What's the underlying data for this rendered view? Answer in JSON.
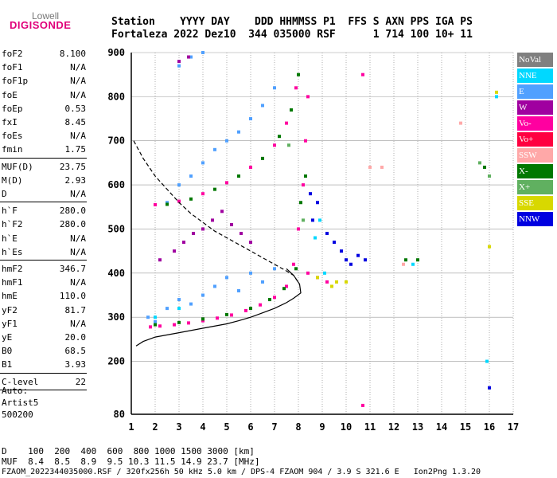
{
  "logo": {
    "line1": "Lowell",
    "line2": "DIGISONDE"
  },
  "header": {
    "line1": "Station    YYYY DAY    DDD HHMMSS P1  FFS S AXN PPS IGA PS",
    "line2": "Fortaleza 2022 Dez10  344 035000 RSF      1 714 100 10+ 11"
  },
  "params": [
    {
      "name": "foF2",
      "value": "8.100"
    },
    {
      "name": "foF1",
      "value": "N/A"
    },
    {
      "name": "foF1p",
      "value": "N/A"
    },
    {
      "name": "foE",
      "value": "N/A"
    },
    {
      "name": "foEp",
      "value": "0.53"
    },
    {
      "name": "fxI",
      "value": "8.45"
    },
    {
      "name": "foEs",
      "value": "N/A"
    },
    {
      "name": "fmin",
      "value": "1.75"
    },
    {
      "name": "MUF(D)",
      "value": "23.75"
    },
    {
      "name": "M(D)",
      "value": "2.93"
    },
    {
      "name": "D",
      "value": "N/A"
    },
    {
      "name": "h`F",
      "value": "280.0"
    },
    {
      "name": "h`F2",
      "value": "280.0"
    },
    {
      "name": "h`E",
      "value": "N/A"
    },
    {
      "name": "h`Es",
      "value": "N/A"
    },
    {
      "name": "hmF2",
      "value": "346.7"
    },
    {
      "name": "hmF1",
      "value": "N/A"
    },
    {
      "name": "hmE",
      "value": "110.0"
    },
    {
      "name": "yF2",
      "value": "81.7"
    },
    {
      "name": "yF1",
      "value": "N/A"
    },
    {
      "name": "yE",
      "value": "20.0"
    },
    {
      "name": "B0",
      "value": "68.5"
    },
    {
      "name": "B1",
      "value": "3.93"
    },
    {
      "name": "C-level",
      "value": "22"
    }
  ],
  "auto": {
    "l1": "Auto:",
    "l2": "Artist5",
    "l3": "500200"
  },
  "legend": [
    {
      "label": "NoVal",
      "color": "#808080"
    },
    {
      "label": "NNE",
      "color": "#00d8ff"
    },
    {
      "label": "E",
      "color": "#50a0ff"
    },
    {
      "label": "W",
      "color": "#a000a0"
    },
    {
      "label": "Vo-",
      "color": "#ff00a0"
    },
    {
      "label": "Vo+",
      "color": "#ff0040"
    },
    {
      "label": "SSW",
      "color": "#ffa8a8"
    },
    {
      "label": "X-",
      "color": "#007800"
    },
    {
      "label": "X+",
      "color": "#60b060"
    },
    {
      "label": "SSE",
      "color": "#d8d800"
    },
    {
      "label": "NNW",
      "color": "#0000e0"
    }
  ],
  "bottom": {
    "d_line": "D    100  200  400  600  800 1000 1500 3000 [km]",
    "muf_line": "MUF  8.4  8.5  8.9  9.5 10.3 11.5 14.9 23.7 [MHz]"
  },
  "footer": "FZAOM_2022344035000.RSF / 320fx256h 50 kHz 5.0 km / DPS-4 FZAOM 904 / 3.9 S 321.6 E   Ion2Png 1.3.20",
  "chart_data": {
    "type": "scatter",
    "title": "",
    "xlabel": "",
    "ylabel": "",
    "xlim": [
      1,
      17
    ],
    "ylim": [
      80,
      900
    ],
    "x_ticks": [
      1,
      2,
      3,
      4,
      5,
      6,
      7,
      8,
      9,
      10,
      11,
      12,
      13,
      14,
      15,
      16,
      17
    ],
    "y_ticks": [
      80,
      200,
      300,
      400,
      500,
      600,
      700,
      800,
      900
    ],
    "grid": true,
    "legend_position": "right",
    "series": [
      {
        "name": "E",
        "points": [
          [
            1.7,
            300
          ],
          [
            2,
            290
          ],
          [
            2.5,
            320
          ],
          [
            3,
            340
          ],
          [
            3.5,
            330
          ],
          [
            4,
            350
          ],
          [
            4.5,
            370
          ],
          [
            5,
            390
          ],
          [
            5.5,
            360
          ],
          [
            6,
            400
          ],
          [
            6.5,
            380
          ],
          [
            7,
            410
          ],
          [
            2.5,
            560
          ],
          [
            3,
            600
          ],
          [
            3.5,
            620
          ],
          [
            4,
            650
          ],
          [
            4.5,
            680
          ],
          [
            5,
            700
          ],
          [
            5.5,
            720
          ],
          [
            6,
            750
          ],
          [
            6.5,
            780
          ],
          [
            7,
            820
          ],
          [
            3,
            870
          ],
          [
            3.5,
            890
          ],
          [
            4,
            900
          ]
        ]
      },
      {
        "name": "W",
        "points": [
          [
            2.2,
            430
          ],
          [
            2.8,
            450
          ],
          [
            3.2,
            470
          ],
          [
            3.6,
            490
          ],
          [
            4,
            500
          ],
          [
            4.4,
            520
          ],
          [
            4.8,
            540
          ],
          [
            5.2,
            510
          ],
          [
            5.6,
            490
          ],
          [
            6,
            470
          ],
          [
            3,
            880
          ],
          [
            3.4,
            890
          ]
        ]
      },
      {
        "name": "Vo-",
        "points": [
          [
            1.8,
            278
          ],
          [
            2.2,
            280
          ],
          [
            2.8,
            283
          ],
          [
            3.4,
            287
          ],
          [
            4,
            292
          ],
          [
            4.6,
            298
          ],
          [
            5.2,
            305
          ],
          [
            5.8,
            315
          ],
          [
            6.4,
            328
          ],
          [
            7,
            345
          ],
          [
            7.5,
            370
          ],
          [
            7.8,
            420
          ],
          [
            8,
            500
          ],
          [
            8.2,
            600
          ],
          [
            8.3,
            700
          ],
          [
            8.4,
            800
          ],
          [
            2,
            555
          ],
          [
            3,
            563
          ],
          [
            4,
            580
          ],
          [
            5,
            605
          ],
          [
            6,
            640
          ],
          [
            7,
            690
          ],
          [
            7.5,
            740
          ],
          [
            7.9,
            820
          ],
          [
            8.4,
            400
          ],
          [
            8.8,
            390
          ],
          [
            9.2,
            380
          ],
          [
            10.7,
            850
          ],
          [
            10.7,
            100
          ]
        ]
      },
      {
        "name": "X-",
        "points": [
          [
            2,
            283
          ],
          [
            3,
            288
          ],
          [
            4,
            296
          ],
          [
            5,
            306
          ],
          [
            6,
            320
          ],
          [
            6.8,
            340
          ],
          [
            7.4,
            365
          ],
          [
            7.9,
            410
          ],
          [
            8.1,
            560
          ],
          [
            8.3,
            620
          ],
          [
            2.5,
            556
          ],
          [
            3.5,
            568
          ],
          [
            4.5,
            590
          ],
          [
            5.5,
            620
          ],
          [
            6.5,
            660
          ],
          [
            7.2,
            710
          ],
          [
            7.7,
            770
          ],
          [
            8,
            850
          ],
          [
            12.5,
            430
          ],
          [
            13,
            430
          ],
          [
            15.8,
            640
          ]
        ]
      },
      {
        "name": "NNW",
        "points": [
          [
            8.5,
            580
          ],
          [
            8.8,
            560
          ],
          [
            9.2,
            490
          ],
          [
            9.5,
            470
          ],
          [
            9.8,
            450
          ],
          [
            10,
            430
          ],
          [
            10.2,
            420
          ],
          [
            10.5,
            440
          ],
          [
            10.8,
            430
          ],
          [
            8.6,
            520
          ],
          [
            16,
            140
          ]
        ]
      },
      {
        "name": "NNE",
        "points": [
          [
            2,
            300
          ],
          [
            3,
            320
          ],
          [
            8.7,
            480
          ],
          [
            8.9,
            520
          ],
          [
            9.1,
            400
          ],
          [
            12.8,
            420
          ],
          [
            15.9,
            200
          ],
          [
            16.3,
            800
          ]
        ]
      },
      {
        "name": "SSE",
        "points": [
          [
            8.8,
            390
          ],
          [
            9.4,
            370
          ],
          [
            9.6,
            380
          ],
          [
            10,
            380
          ],
          [
            16.3,
            810
          ],
          [
            16,
            460
          ]
        ]
      },
      {
        "name": "X+",
        "points": [
          [
            7.6,
            690
          ],
          [
            8.2,
            520
          ],
          [
            15.6,
            650
          ],
          [
            16,
            620
          ]
        ]
      },
      {
        "name": "SSW",
        "points": [
          [
            11,
            640
          ],
          [
            11.5,
            640
          ],
          [
            12.4,
            420
          ],
          [
            14.8,
            740
          ]
        ]
      }
    ],
    "curves": [
      {
        "name": "profile-solid",
        "points": [
          [
            1.2,
            235
          ],
          [
            1.5,
            245
          ],
          [
            2,
            255
          ],
          [
            3,
            265
          ],
          [
            4,
            275
          ],
          [
            5,
            285
          ],
          [
            5.5,
            292
          ],
          [
            6,
            300
          ],
          [
            6.5,
            310
          ],
          [
            7,
            320
          ],
          [
            7.5,
            333
          ],
          [
            7.8,
            343
          ],
          [
            8.1,
            355
          ],
          [
            8.05,
            375
          ],
          [
            7.8,
            395
          ],
          [
            7.5,
            410
          ]
        ]
      },
      {
        "name": "profile-dashed",
        "points": [
          [
            1.1,
            700
          ],
          [
            1.5,
            660
          ],
          [
            2,
            620
          ],
          [
            2.5,
            590
          ],
          [
            3,
            560
          ],
          [
            3.5,
            535
          ],
          [
            4,
            515
          ],
          [
            4.5,
            495
          ],
          [
            5,
            480
          ],
          [
            5.5,
            465
          ],
          [
            6,
            450
          ],
          [
            6.5,
            435
          ],
          [
            7,
            420
          ],
          [
            7.5,
            405
          ],
          [
            7.8,
            395
          ],
          [
            8.05,
            375
          ]
        ]
      }
    ]
  }
}
